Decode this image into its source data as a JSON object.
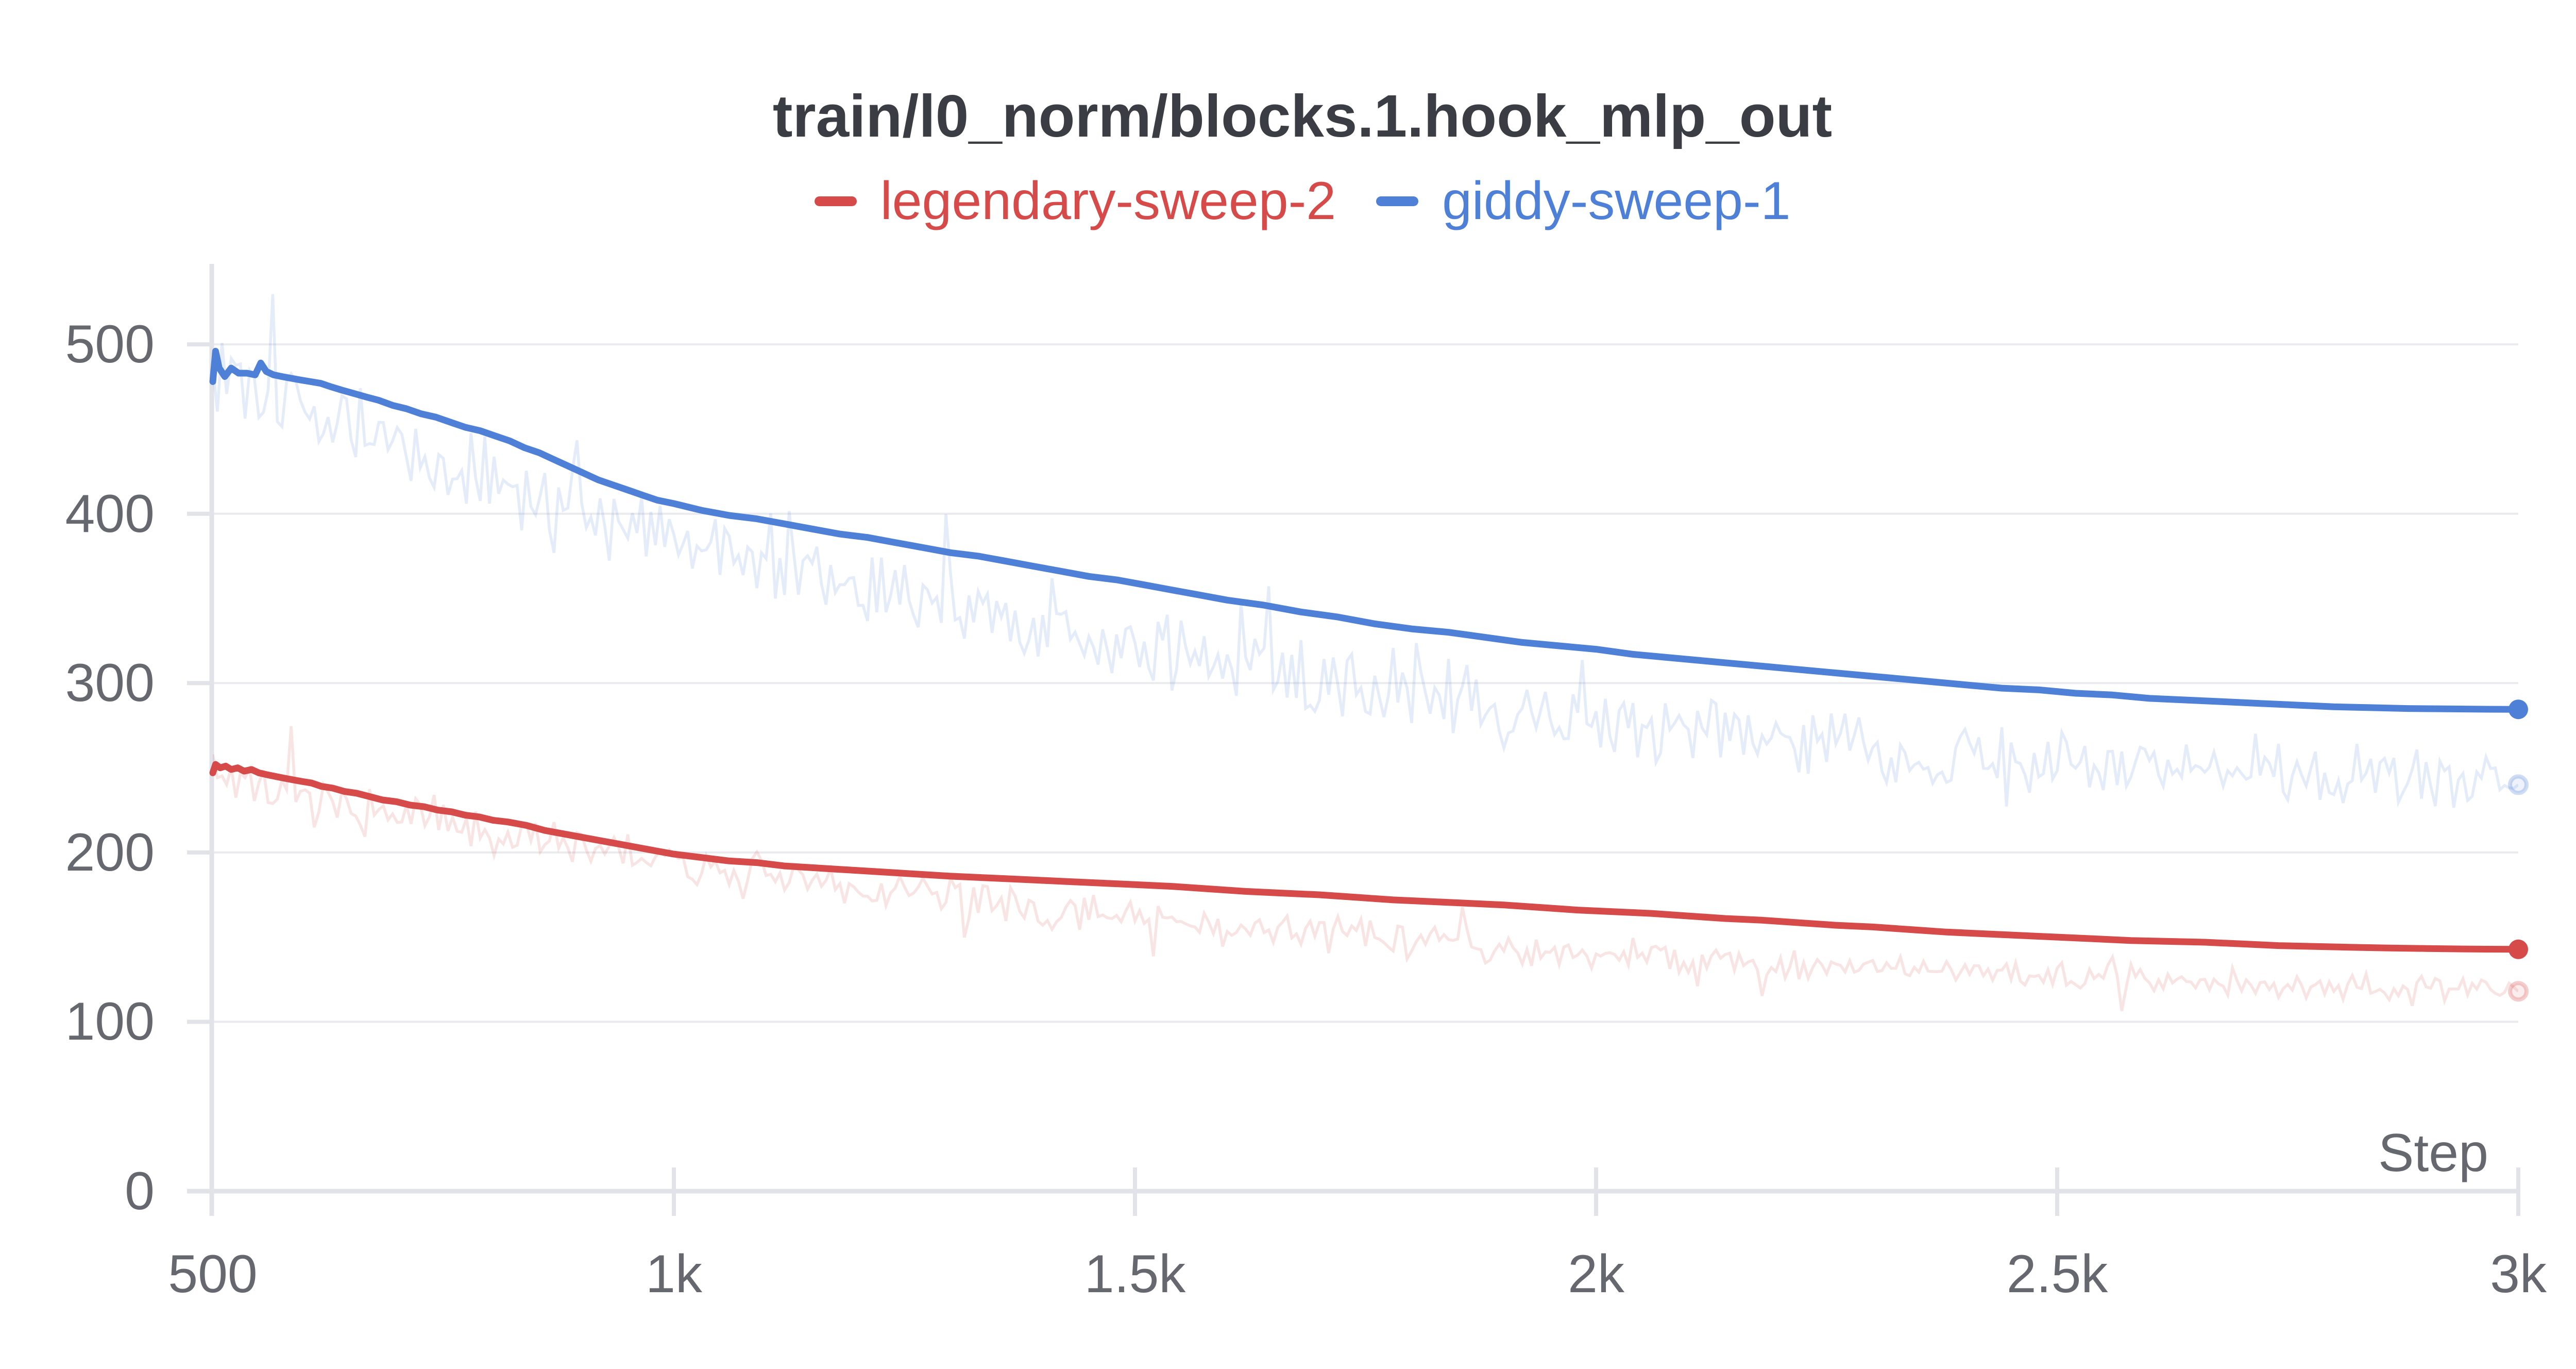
{
  "page": {
    "background": "#FFFFFF"
  },
  "colors": {
    "title_text": "#3A3D43",
    "tick_text": "#66686F",
    "axis_line": "#E2E3E8",
    "grid_line": "#EAEBEE",
    "red_series": "#D64A4A",
    "blue_series": "#4E80D8"
  },
  "chart_data": {
    "type": "line",
    "title": "train/l0_norm/blocks.1.hook_mlp_out",
    "xlabel": "Step",
    "ylabel": "",
    "xlim": [
      500,
      3000
    ],
    "ylim": [
      0,
      548
    ],
    "grid": true,
    "legend_position": "top-center",
    "x_ticks": {
      "values": [
        500,
        1000,
        1500,
        2000,
        2500,
        3000
      ],
      "labels": [
        "500",
        "1k",
        "1.5k",
        "2k",
        "2.5k",
        "3k"
      ]
    },
    "y_ticks": {
      "values": [
        0,
        100,
        200,
        300,
        400,
        500
      ],
      "labels": [
        "0",
        "100",
        "200",
        "300",
        "400",
        "500"
      ]
    },
    "series": [
      {
        "name": "legendary-sweep-2",
        "color": "#D64A4A",
        "final_smoothed_value": 142.8,
        "final_raw_value": 118,
        "noise": {
          "start": 16,
          "end": 9,
          "seed": 7
        },
        "smoothed": [
          [
            500,
            247
          ],
          [
            503,
            252
          ],
          [
            508,
            250
          ],
          [
            514,
            251
          ],
          [
            520,
            249
          ],
          [
            527,
            250
          ],
          [
            534,
            248
          ],
          [
            542,
            249
          ],
          [
            550,
            247
          ],
          [
            558,
            246
          ],
          [
            567,
            245
          ],
          [
            576,
            244
          ],
          [
            586,
            243
          ],
          [
            596,
            242
          ],
          [
            607,
            241
          ],
          [
            618,
            239
          ],
          [
            630,
            238
          ],
          [
            643,
            236
          ],
          [
            656,
            235
          ],
          [
            670,
            233
          ],
          [
            684,
            231
          ],
          [
            699,
            230
          ],
          [
            714,
            228
          ],
          [
            729,
            227
          ],
          [
            744,
            225
          ],
          [
            759,
            224
          ],
          [
            774,
            222
          ],
          [
            789,
            221
          ],
          [
            804,
            219
          ],
          [
            820,
            218
          ],
          [
            840,
            216
          ],
          [
            860,
            213
          ],
          [
            880,
            211
          ],
          [
            900,
            209
          ],
          [
            920,
            207
          ],
          [
            940,
            205
          ],
          [
            960,
            203
          ],
          [
            980,
            201
          ],
          [
            1000,
            199
          ],
          [
            1030,
            197
          ],
          [
            1060,
            195
          ],
          [
            1090,
            194
          ],
          [
            1120,
            192
          ],
          [
            1150,
            191
          ],
          [
            1180,
            190
          ],
          [
            1210,
            189
          ],
          [
            1240,
            188
          ],
          [
            1270,
            187
          ],
          [
            1300,
            186
          ],
          [
            1340,
            185
          ],
          [
            1380,
            184
          ],
          [
            1420,
            183
          ],
          [
            1460,
            182
          ],
          [
            1500,
            181
          ],
          [
            1540,
            180
          ],
          [
            1580,
            178.5
          ],
          [
            1620,
            177
          ],
          [
            1660,
            176
          ],
          [
            1700,
            175
          ],
          [
            1740,
            173.5
          ],
          [
            1780,
            172
          ],
          [
            1820,
            171
          ],
          [
            1860,
            170
          ],
          [
            1900,
            169
          ],
          [
            1940,
            167.5
          ],
          [
            1980,
            166
          ],
          [
            2020,
            165
          ],
          [
            2060,
            164
          ],
          [
            2100,
            162.5
          ],
          [
            2140,
            161
          ],
          [
            2180,
            160
          ],
          [
            2220,
            158.5
          ],
          [
            2260,
            157
          ],
          [
            2300,
            156
          ],
          [
            2340,
            154.5
          ],
          [
            2380,
            153
          ],
          [
            2420,
            152
          ],
          [
            2460,
            151
          ],
          [
            2500,
            150
          ],
          [
            2540,
            149
          ],
          [
            2580,
            148
          ],
          [
            2620,
            147.5
          ],
          [
            2660,
            147
          ],
          [
            2700,
            146
          ],
          [
            2740,
            145
          ],
          [
            2780,
            144.5
          ],
          [
            2820,
            144
          ],
          [
            2860,
            143.6
          ],
          [
            2900,
            143.3
          ],
          [
            2940,
            143
          ],
          [
            2970,
            142.9
          ],
          [
            3000,
            142.8
          ]
        ],
        "raw_trend": [
          [
            500,
            247
          ],
          [
            550,
            239
          ],
          [
            600,
            231
          ],
          [
            650,
            226
          ],
          [
            700,
            221
          ],
          [
            750,
            216
          ],
          [
            800,
            211
          ],
          [
            850,
            207
          ],
          [
            900,
            202
          ],
          [
            950,
            198
          ],
          [
            1000,
            194
          ],
          [
            1100,
            186
          ],
          [
            1200,
            179
          ],
          [
            1300,
            172
          ],
          [
            1400,
            166
          ],
          [
            1500,
            161
          ],
          [
            1600,
            156
          ],
          [
            1700,
            152
          ],
          [
            1800,
            148
          ],
          [
            1900,
            144
          ],
          [
            2000,
            141
          ],
          [
            2100,
            138
          ],
          [
            2200,
            135
          ],
          [
            2300,
            132
          ],
          [
            2400,
            129
          ],
          [
            2500,
            127
          ],
          [
            2600,
            125
          ],
          [
            2700,
            123
          ],
          [
            2800,
            121
          ],
          [
            2900,
            119
          ],
          [
            3000,
            118
          ]
        ]
      },
      {
        "name": "giddy-sweep-1",
        "color": "#4E80D8",
        "final_smoothed_value": 284.5,
        "final_raw_value": 240,
        "noise": {
          "start": 30,
          "end": 19,
          "seed": 13
        },
        "smoothed": [
          [
            500,
            478
          ],
          [
            503,
            496
          ],
          [
            507,
            486
          ],
          [
            513,
            481
          ],
          [
            520,
            486
          ],
          [
            528,
            483
          ],
          [
            537,
            483
          ],
          [
            546,
            482
          ],
          [
            552,
            489
          ],
          [
            558,
            484
          ],
          [
            566,
            482
          ],
          [
            575,
            481
          ],
          [
            585,
            480
          ],
          [
            595,
            479
          ],
          [
            606,
            478
          ],
          [
            617,
            477
          ],
          [
            628,
            475
          ],
          [
            640,
            473
          ],
          [
            653,
            471
          ],
          [
            666,
            469
          ],
          [
            680,
            467
          ],
          [
            695,
            464
          ],
          [
            710,
            462
          ],
          [
            726,
            459
          ],
          [
            742,
            457
          ],
          [
            758,
            454
          ],
          [
            774,
            451
          ],
          [
            790,
            449
          ],
          [
            806,
            446
          ],
          [
            822,
            443
          ],
          [
            838,
            439
          ],
          [
            854,
            436
          ],
          [
            870,
            432
          ],
          [
            886,
            428
          ],
          [
            902,
            424
          ],
          [
            918,
            420
          ],
          [
            934,
            417
          ],
          [
            950,
            414
          ],
          [
            966,
            411
          ],
          [
            982,
            408
          ],
          [
            1000,
            406
          ],
          [
            1030,
            402
          ],
          [
            1060,
            399
          ],
          [
            1090,
            397
          ],
          [
            1120,
            394
          ],
          [
            1150,
            391
          ],
          [
            1180,
            388
          ],
          [
            1210,
            386
          ],
          [
            1240,
            383
          ],
          [
            1270,
            380
          ],
          [
            1300,
            377
          ],
          [
            1330,
            375
          ],
          [
            1360,
            372
          ],
          [
            1390,
            369
          ],
          [
            1420,
            366
          ],
          [
            1450,
            363
          ],
          [
            1480,
            361
          ],
          [
            1510,
            358
          ],
          [
            1540,
            355
          ],
          [
            1570,
            352
          ],
          [
            1600,
            349
          ],
          [
            1640,
            346
          ],
          [
            1680,
            342
          ],
          [
            1720,
            339
          ],
          [
            1760,
            335
          ],
          [
            1800,
            332
          ],
          [
            1840,
            330
          ],
          [
            1880,
            327
          ],
          [
            1920,
            324
          ],
          [
            1960,
            322
          ],
          [
            2000,
            320
          ],
          [
            2040,
            317
          ],
          [
            2080,
            315
          ],
          [
            2120,
            313
          ],
          [
            2160,
            311
          ],
          [
            2200,
            309
          ],
          [
            2240,
            307
          ],
          [
            2280,
            305
          ],
          [
            2320,
            303
          ],
          [
            2360,
            301
          ],
          [
            2400,
            299
          ],
          [
            2440,
            297
          ],
          [
            2480,
            296
          ],
          [
            2520,
            294
          ],
          [
            2560,
            293
          ],
          [
            2600,
            291
          ],
          [
            2640,
            290
          ],
          [
            2680,
            289
          ],
          [
            2720,
            288
          ],
          [
            2760,
            287
          ],
          [
            2800,
            286
          ],
          [
            2840,
            285.5
          ],
          [
            2880,
            285
          ],
          [
            2920,
            284.8
          ],
          [
            2960,
            284.6
          ],
          [
            3000,
            284.5
          ]
        ],
        "raw_trend": [
          [
            500,
            490
          ],
          [
            540,
            482
          ],
          [
            580,
            468
          ],
          [
            620,
            456
          ],
          [
            660,
            446
          ],
          [
            700,
            438
          ],
          [
            750,
            429
          ],
          [
            800,
            420
          ],
          [
            850,
            411
          ],
          [
            900,
            403
          ],
          [
            950,
            395
          ],
          [
            1000,
            387
          ],
          [
            1100,
            371
          ],
          [
            1200,
            357
          ],
          [
            1300,
            344
          ],
          [
            1400,
            332
          ],
          [
            1500,
            321
          ],
          [
            1600,
            311
          ],
          [
            1700,
            302
          ],
          [
            1800,
            293
          ],
          [
            1900,
            285
          ],
          [
            2000,
            278
          ],
          [
            2100,
            272
          ],
          [
            2200,
            266
          ],
          [
            2300,
            261
          ],
          [
            2400,
            257
          ],
          [
            2500,
            253
          ],
          [
            2600,
            250
          ],
          [
            2700,
            247
          ],
          [
            2800,
            244
          ],
          [
            2900,
            242
          ],
          [
            3000,
            240
          ]
        ]
      }
    ]
  }
}
